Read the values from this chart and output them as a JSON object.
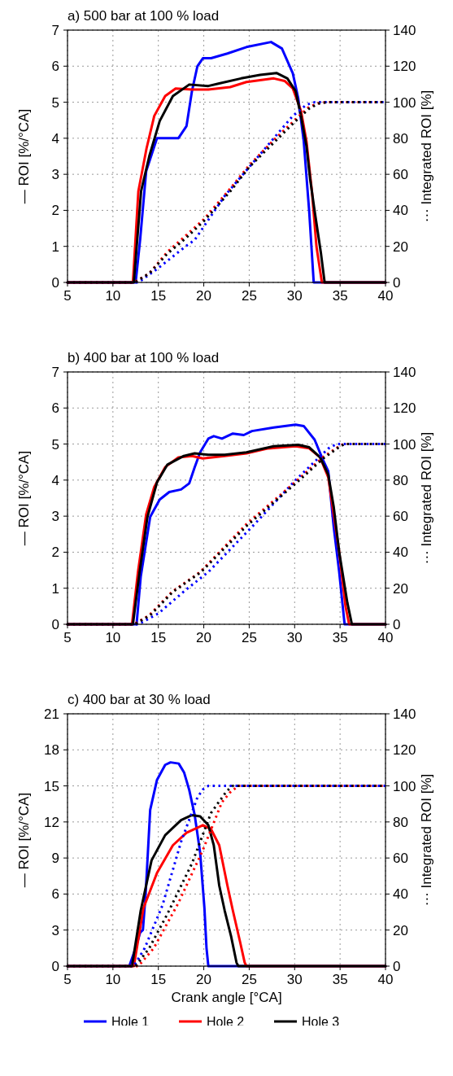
{
  "chart_data": [
    {
      "type": "line",
      "title": "a) 500 bar at 100 % load",
      "ylabel": "— ROI [%/°CA]",
      "y2label": "··· Integrated ROI [%]",
      "xlim": [
        5,
        40
      ],
      "xticks": [
        5,
        10,
        15,
        20,
        25,
        30,
        35,
        40
      ],
      "ylim": [
        0,
        7
      ],
      "yticks": [
        0,
        1,
        2,
        3,
        4,
        5,
        6,
        7
      ],
      "y2lim": [
        0,
        140
      ],
      "y2ticks": [
        0,
        20,
        40,
        60,
        80,
        100,
        120,
        140
      ],
      "grid": true,
      "series": [
        {
          "color": "#0000ff",
          "line_style": "solid",
          "x": [
            5,
            12.5,
            13,
            13.66,
            14.85,
            17.2,
            18.1,
            18.7,
            19.3,
            19.9,
            20.8,
            22.6,
            24.7,
            27.4,
            28.6,
            29.8,
            30.4,
            31.0,
            31.6,
            32.1,
            40
          ],
          "values": [
            0,
            0,
            1.2,
            3.09,
            4.0,
            4.0,
            4.34,
            5.31,
            6.0,
            6.22,
            6.22,
            6.35,
            6.53,
            6.67,
            6.49,
            5.8,
            5.1,
            3.92,
            1.98,
            0,
            0
          ]
        },
        {
          "color": "#ff0000",
          "line_style": "solid",
          "x": [
            5,
            12.2,
            12.8,
            13.7,
            14.55,
            15.75,
            16.9,
            18.7,
            20.5,
            22.9,
            24.7,
            27.7,
            28.9,
            29.8,
            30.7,
            31.3,
            31.9,
            32.4,
            33.0,
            40
          ],
          "values": [
            0,
            0,
            2.53,
            3.72,
            4.62,
            5.17,
            5.38,
            5.35,
            5.35,
            5.42,
            5.56,
            5.66,
            5.59,
            5.38,
            4.76,
            3.92,
            2.53,
            1.0,
            0,
            0
          ]
        },
        {
          "color": "#000000",
          "line_style": "solid",
          "x": [
            5,
            12.3,
            13.1,
            14.0,
            15.15,
            16.6,
            18.4,
            20.5,
            21.7,
            24.1,
            26.2,
            28.0,
            29.2,
            30.1,
            30.7,
            31.3,
            31.7,
            32.2,
            32.9,
            33.3,
            40
          ],
          "values": [
            0,
            0,
            2.53,
            3.5,
            4.48,
            5.17,
            5.49,
            5.45,
            5.52,
            5.66,
            5.76,
            5.81,
            5.66,
            5.31,
            4.62,
            3.78,
            2.88,
            1.98,
            0.8,
            0,
            0
          ]
        },
        {
          "color": "#0000ff",
          "line_style": "dotted",
          "axis": "y2",
          "x": [
            5,
            12.8,
            15,
            18,
            19.0,
            22.3,
            27.7,
            29.8,
            31.3,
            32.2,
            40
          ],
          "values": [
            0,
            0,
            8,
            20,
            23.6,
            48,
            80,
            92.4,
            98.6,
            100,
            100
          ]
        },
        {
          "color": "#ff0000",
          "line_style": "dotted",
          "axis": "y2",
          "x": [
            5,
            12.3,
            14,
            16,
            17.8,
            20,
            22.9,
            25,
            27.7,
            30,
            31.5,
            32.5,
            33.4,
            40
          ],
          "values": [
            0,
            0,
            5,
            17,
            25,
            35,
            52,
            65,
            79,
            90,
            97,
            99.3,
            100,
            100
          ]
        },
        {
          "color": "#000000",
          "line_style": "dotted",
          "axis": "y2",
          "x": [
            5,
            12.4,
            14,
            16,
            17.9,
            20,
            23,
            25,
            27.8,
            30,
            31.6,
            32.6,
            33.5,
            40
          ],
          "values": [
            0,
            0,
            5,
            16,
            24,
            34,
            51,
            64,
            78,
            89,
            96.5,
            99.2,
            100,
            100
          ]
        }
      ]
    },
    {
      "type": "line",
      "title": "b) 400 bar at 100 % load",
      "ylabel": "— ROI [%/°CA]",
      "y2label": "··· Integrated ROI [%]",
      "xlim": [
        5,
        40
      ],
      "xticks": [
        5,
        10,
        15,
        20,
        25,
        30,
        35,
        40
      ],
      "ylim": [
        0,
        7
      ],
      "yticks": [
        0,
        1,
        2,
        3,
        4,
        5,
        6,
        7
      ],
      "y2lim": [
        0,
        140
      ],
      "y2ticks": [
        0,
        20,
        40,
        60,
        80,
        100,
        120,
        140
      ],
      "grid": true,
      "series": [
        {
          "color": "#0000ff",
          "line_style": "solid",
          "x": [
            5,
            12.6,
            13.06,
            14.1,
            15.15,
            16.2,
            17.5,
            18.4,
            19.0,
            19.6,
            20.5,
            21.1,
            22.0,
            23.2,
            24.4,
            25.3,
            27.7,
            30.1,
            31.0,
            32.2,
            33.1,
            33.7,
            34.3,
            34.9,
            35.5,
            40
          ],
          "values": [
            0,
            0,
            1.32,
            2.98,
            3.46,
            3.67,
            3.74,
            3.91,
            4.36,
            4.77,
            5.15,
            5.22,
            5.15,
            5.29,
            5.25,
            5.36,
            5.46,
            5.54,
            5.5,
            5.12,
            4.57,
            4.25,
            2.7,
            1.46,
            0,
            0
          ]
        },
        {
          "color": "#ff0000",
          "line_style": "solid",
          "x": [
            5,
            12.1,
            12.76,
            13.66,
            14.55,
            15.75,
            17.2,
            18.7,
            19.9,
            22.3,
            24.7,
            27.1,
            30.1,
            31.6,
            32.8,
            33.7,
            34.3,
            34.9,
            35.6,
            36.0,
            40
          ],
          "values": [
            0,
            0,
            1.46,
            3.05,
            3.81,
            4.36,
            4.63,
            4.67,
            4.6,
            4.67,
            4.74,
            4.88,
            4.94,
            4.88,
            4.63,
            4.08,
            3.05,
            2.01,
            0.5,
            0,
            0
          ]
        },
        {
          "color": "#000000",
          "line_style": "solid",
          "x": [
            5,
            12.2,
            12.9,
            13.8,
            14.85,
            16.0,
            17.8,
            19.0,
            20.5,
            22.3,
            24.7,
            27.7,
            30.4,
            31.6,
            32.8,
            33.7,
            34.3,
            34.9,
            35.8,
            36.3,
            40
          ],
          "values": [
            0,
            0,
            1.39,
            2.98,
            3.94,
            4.43,
            4.67,
            4.74,
            4.7,
            4.7,
            4.77,
            4.94,
            4.98,
            4.91,
            4.63,
            4.15,
            3.26,
            2.01,
            0.6,
            0,
            0
          ]
        },
        {
          "color": "#0000ff",
          "line_style": "dotted",
          "axis": "y2",
          "x": [
            5,
            12.8,
            15,
            18,
            20.5,
            25.6,
            30.1,
            33.7,
            34.6,
            40
          ],
          "values": [
            0,
            0,
            6,
            19,
            29,
            55.6,
            80,
            97.5,
            100,
            100
          ]
        },
        {
          "color": "#ff0000",
          "line_style": "dotted",
          "axis": "y2",
          "x": [
            5,
            12.3,
            14,
            16.5,
            19.6,
            24.7,
            30.1,
            33.1,
            34.9,
            35.4,
            40
          ],
          "values": [
            0,
            0,
            5,
            18,
            29,
            55.6,
            79,
            92.6,
            98.8,
            100,
            100
          ]
        },
        {
          "color": "#000000",
          "line_style": "dotted",
          "axis": "y2",
          "x": [
            5,
            12.4,
            14.1,
            16.6,
            19.7,
            24.8,
            30.2,
            33.2,
            35.0,
            35.5,
            40
          ],
          "values": [
            0,
            0,
            5,
            18,
            29,
            55,
            78.5,
            92.2,
            98.7,
            100,
            100
          ]
        }
      ]
    },
    {
      "type": "line",
      "title": "c) 400 bar at 30 % load",
      "xlabel": "Crank angle [°CA]",
      "ylabel": "— ROI [%/°CA]",
      "y2label": "··· Integrated ROI [%]",
      "xlim": [
        5,
        40
      ],
      "xticks": [
        5,
        10,
        15,
        20,
        25,
        30,
        35,
        40
      ],
      "ylim": [
        0,
        21
      ],
      "yticks": [
        0,
        3,
        6,
        9,
        12,
        15,
        18,
        21
      ],
      "y2lim": [
        0,
        140
      ],
      "y2ticks": [
        0,
        20,
        40,
        60,
        80,
        100,
        120,
        140
      ],
      "grid": true,
      "legend": "bottom",
      "series": [
        {
          "name": "Hole 1",
          "color": "#0000ff",
          "line_style": "solid",
          "x": [
            5,
            11.8,
            12.5,
            13.0,
            13.3,
            13.6,
            14.1,
            14.85,
            15.75,
            16.34,
            17.24,
            17.84,
            18.4,
            19.0,
            19.6,
            20.07,
            20.3,
            20.5,
            40
          ],
          "values": [
            0,
            0,
            1.5,
            2.8,
            3.0,
            6.0,
            13.0,
            15.5,
            16.75,
            16.96,
            16.86,
            16.1,
            14.66,
            12.57,
            9.43,
            4.83,
            1.5,
            0,
            0
          ]
        },
        {
          "name": "Hole 2",
          "color": "#ff0000",
          "line_style": "solid",
          "x": [
            5,
            12.3,
            13.36,
            14.85,
            16.6,
            18.1,
            19.9,
            20.8,
            21.7,
            22.6,
            23.2,
            24.0,
            24.5,
            24.7,
            40
          ],
          "values": [
            0,
            0,
            4.83,
            7.76,
            10.06,
            11.1,
            11.73,
            11.4,
            10.06,
            6.71,
            4.62,
            2.0,
            0.3,
            0,
            0
          ]
        },
        {
          "name": "Hole 3",
          "color": "#000000",
          "line_style": "solid",
          "x": [
            5,
            12.1,
            13.06,
            14.25,
            15.75,
            17.5,
            18.7,
            19.6,
            20.5,
            21.1,
            21.7,
            22.3,
            23.0,
            23.6,
            23.8,
            40
          ],
          "values": [
            0,
            0,
            4.62,
            8.8,
            10.9,
            12.15,
            12.57,
            12.46,
            11.73,
            10.06,
            6.71,
            4.62,
            2.5,
            0.3,
            0,
            0
          ]
        },
        {
          "color": "#0000ff",
          "line_style": "dotted",
          "axis": "y2",
          "x": [
            5,
            12.3,
            13.5,
            15.45,
            17.5,
            19.3,
            19.9,
            20.5,
            40
          ],
          "values": [
            0,
            0,
            10,
            33.7,
            69,
            93.6,
            98,
            100,
            100
          ]
        },
        {
          "color": "#ff0000",
          "line_style": "dotted",
          "axis": "y2",
          "x": [
            5,
            12.8,
            14.5,
            17.2,
            19.9,
            22.0,
            22.9,
            23.8,
            40
          ],
          "values": [
            0,
            0,
            10,
            35,
            64.4,
            91,
            96.4,
            100,
            100
          ]
        },
        {
          "color": "#000000",
          "line_style": "dotted",
          "axis": "y2",
          "x": [
            5,
            12.5,
            14,
            16.0,
            18.7,
            20.8,
            22.5,
            23.2,
            40
          ],
          "values": [
            0,
            0,
            10,
            29,
            57,
            85,
            97,
            100,
            100
          ]
        }
      ]
    }
  ]
}
